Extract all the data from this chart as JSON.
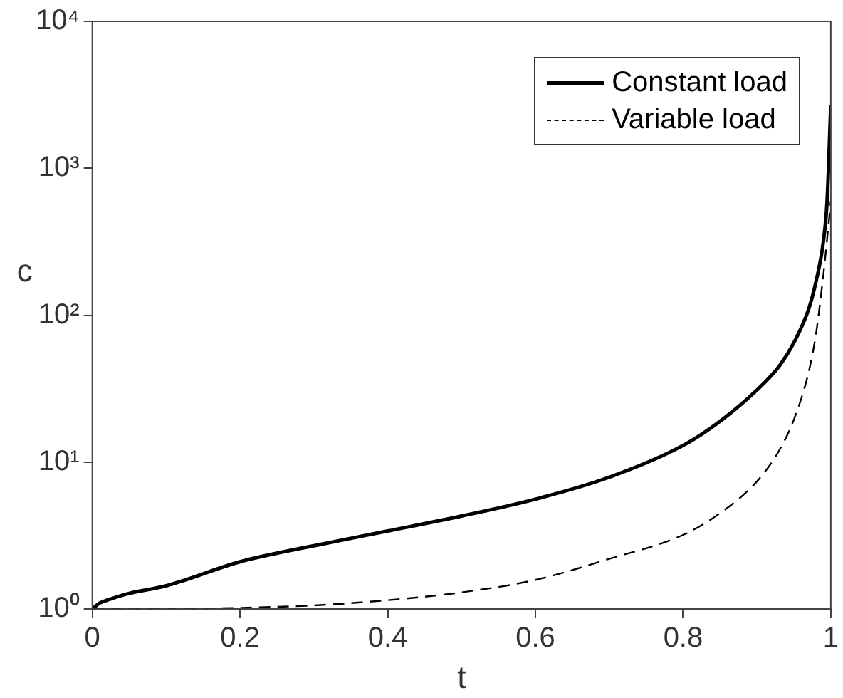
{
  "chart_data": {
    "type": "line",
    "xlabel": "t",
    "ylabel": "c",
    "xlim": [
      0,
      1
    ],
    "xticks": [
      0,
      0.2,
      0.4,
      0.6,
      0.8,
      1
    ],
    "ylim": [
      1,
      10000
    ],
    "yticks": [
      {
        "value": 1,
        "label": "10⁰"
      },
      {
        "value": 10,
        "label": "10¹"
      },
      {
        "value": 100,
        "label": "10²"
      },
      {
        "value": 1000,
        "label": "10³"
      },
      {
        "value": 10000,
        "label": "10⁴"
      }
    ],
    "log": "y",
    "grid": false,
    "legend": "top right",
    "marker": "none",
    "series": [
      {
        "name": "Constant load",
        "color": "#000000",
        "line_style": "solid",
        "x": [
          0,
          0.01,
          0.02,
          0.05,
          0.1,
          0.2,
          0.3,
          0.4,
          0.5,
          0.6,
          0.7,
          0.8,
          0.85,
          0.9,
          0.93,
          0.95,
          0.97,
          0.98,
          0.99,
          0.995,
          1
        ],
        "values": [
          1,
          1.1,
          1.15,
          1.28,
          1.44,
          2.1,
          2.7,
          3.4,
          4.3,
          5.6,
          7.9,
          13,
          19,
          31,
          45,
          65,
          110,
          170,
          320,
          600,
          2700
        ]
      },
      {
        "name": "Variable load",
        "color": "#000000",
        "line_style": "dashed",
        "x": [
          0,
          0.1,
          0.2,
          0.3,
          0.4,
          0.5,
          0.6,
          0.7,
          0.8,
          0.85,
          0.9,
          0.93,
          0.95,
          0.97,
          0.98,
          0.99,
          0.995,
          1
        ],
        "values": [
          1,
          1,
          1.02,
          1.06,
          1.15,
          1.3,
          1.58,
          2.2,
          3.2,
          4.5,
          7.4,
          12,
          19.5,
          41,
          75,
          190,
          330,
          600
        ]
      }
    ]
  }
}
